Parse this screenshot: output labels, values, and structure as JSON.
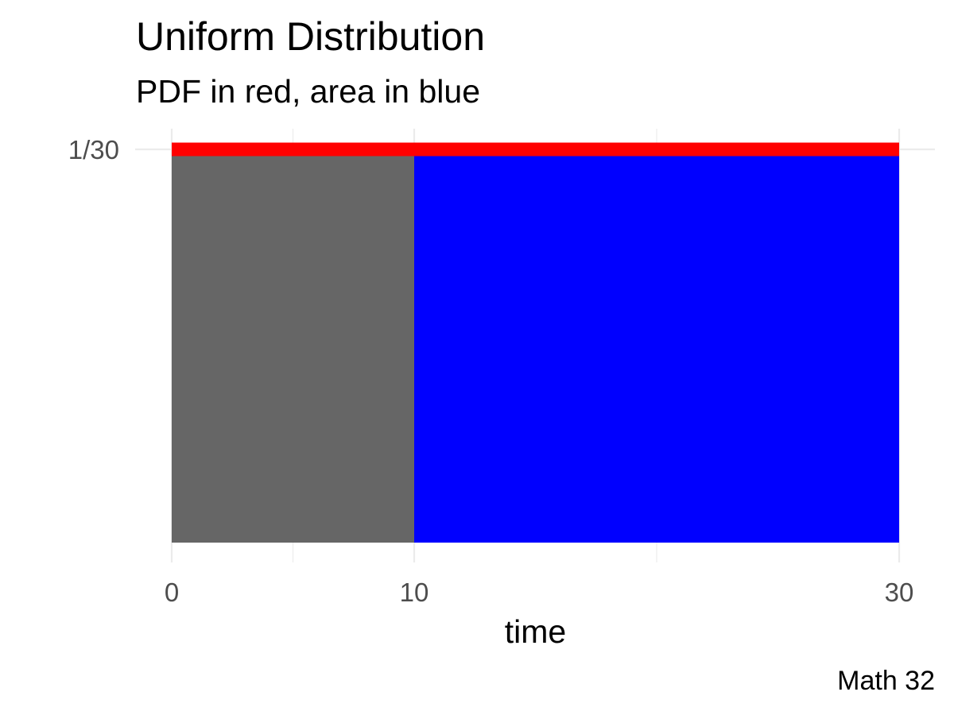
{
  "chart_data": {
    "type": "area",
    "title": "Uniform Distribution",
    "subtitle": "PDF in red, area in blue",
    "caption": "Math 32",
    "xlabel": "time",
    "ylabel": "",
    "x_ticks": [
      0,
      10,
      30
    ],
    "x_tick_labels": [
      "0",
      "10",
      "30"
    ],
    "y_ticks": [
      0.0333333
    ],
    "y_tick_labels": [
      "1/30"
    ],
    "xlim": [
      0,
      30
    ],
    "ylim": [
      0,
      0.0333333
    ],
    "grid": true,
    "pdf": {
      "x": [
        0,
        30
      ],
      "y": [
        0.0333333,
        0.0333333
      ],
      "color": "#ff0000"
    },
    "regions": [
      {
        "x": [
          0,
          10
        ],
        "y": 0.0333333,
        "color": "#666666"
      },
      {
        "x": [
          10,
          30
        ],
        "y": 0.0333333,
        "color": "#0000ff"
      }
    ]
  }
}
